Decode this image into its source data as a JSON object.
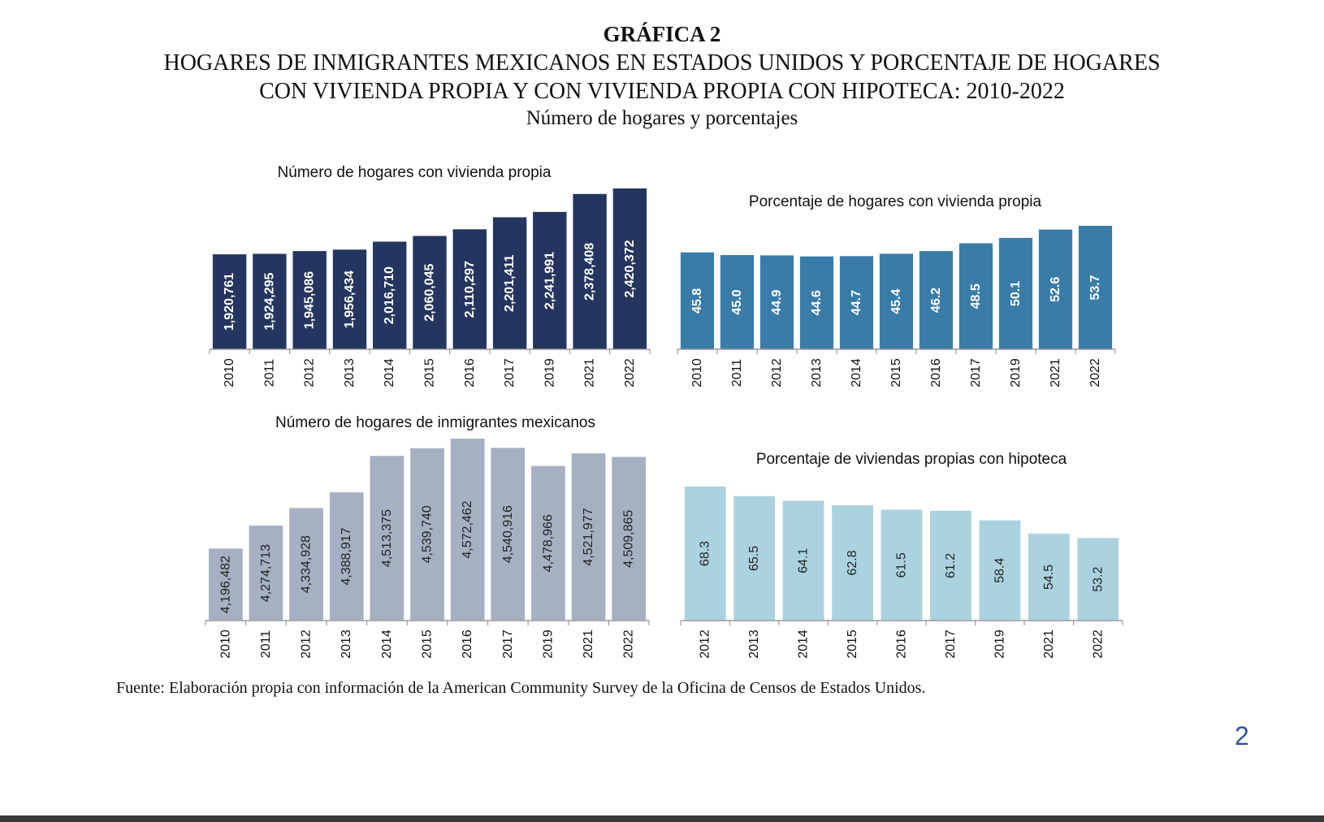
{
  "heading": {
    "figure_label": "GRÁFICA 2",
    "title_line1": "HOGARES DE INMIGRANTES MEXICANOS EN ESTADOS UNIDOS Y PORCENTAJE DE HOGARES",
    "title_line2": "CON VIVIENDA PROPIA Y CON VIVIENDA PROPIA CON HIPOTECA: 2010-2022",
    "subtitle": "Número de hogares y porcentajes"
  },
  "source_note": "Fuente: Elaboración propia con información de la American Community Survey de la Oficina de Censos de Estados Unidos.",
  "page_number": "2",
  "colors": {
    "owned_count": "#24365f",
    "owned_pct": "#3a7ca8",
    "households": "#a5b0c3",
    "mortgage_pct": "#abd3df",
    "bottom_bar": "#3b3b3b",
    "page_number": "#2f5496"
  },
  "chart_data": [
    {
      "type": "bar",
      "title": "Número de hogares con vivienda propia",
      "categories": [
        "2010",
        "2011",
        "2012",
        "2013",
        "2014",
        "2015",
        "2016",
        "2017",
        "2019",
        "2021",
        "2022"
      ],
      "values": [
        1920761,
        1924295,
        1945086,
        1956434,
        2016710,
        2060045,
        2110297,
        2201411,
        2241991,
        2378408,
        2420372
      ],
      "data_labels": [
        "1,920,761",
        "1,924,295",
        "1,945,086",
        "1,956,434",
        "2,016,710",
        "2,060,045",
        "2,110,297",
        "2,201,411",
        "2,241,991",
        "2,378,408",
        "2,420,372"
      ],
      "label_color": "#ffffff",
      "grid": false,
      "legend": "none"
    },
    {
      "type": "bar",
      "title": "Porcentaje de hogares con vivienda propia",
      "categories": [
        "2010",
        "2011",
        "2012",
        "2013",
        "2014",
        "2015",
        "2016",
        "2017",
        "2019",
        "2021",
        "2022"
      ],
      "values": [
        45.8,
        45.0,
        44.9,
        44.6,
        44.7,
        45.4,
        46.2,
        48.5,
        50.1,
        52.6,
        53.7
      ],
      "data_labels": [
        "45.8",
        "45.0",
        "44.9",
        "44.6",
        "44.7",
        "45.4",
        "46.2",
        "48.5",
        "50.1",
        "52.6",
        "53.7"
      ],
      "label_color": "#ffffff",
      "grid": false,
      "legend": "none"
    },
    {
      "type": "bar",
      "title": "Número de hogares de inmigrantes mexicanos",
      "categories": [
        "2010",
        "2011",
        "2012",
        "2013",
        "2014",
        "2015",
        "2016",
        "2017",
        "2019",
        "2021",
        "2022"
      ],
      "values": [
        4196482,
        4274713,
        4334928,
        4388917,
        4513375,
        4539740,
        4572462,
        4540916,
        4478966,
        4521977,
        4509865
      ],
      "data_labels": [
        "4,196,482",
        "4,274,713",
        "4,334,928",
        "4,388,917",
        "4,513,375",
        "4,539,740",
        "4,572,462",
        "4,540,916",
        "4,478,966",
        "4,521,977",
        "4,509,865"
      ],
      "label_color": "#222222",
      "grid": false,
      "legend": "none"
    },
    {
      "type": "bar",
      "title": "Porcentaje de viviendas propias con hipoteca",
      "categories": [
        "2012",
        "2013",
        "2014",
        "2015",
        "2016",
        "2017",
        "2019",
        "2021",
        "2022"
      ],
      "values": [
        68.3,
        65.5,
        64.1,
        62.8,
        61.5,
        61.2,
        58.4,
        54.5,
        53.2
      ],
      "data_labels": [
        "68.3",
        "65.5",
        "64.1",
        "62.8",
        "61.5",
        "61.2",
        "58.4",
        "54.5",
        "53.2"
      ],
      "label_color": "#222222",
      "grid": false,
      "legend": "none"
    }
  ]
}
